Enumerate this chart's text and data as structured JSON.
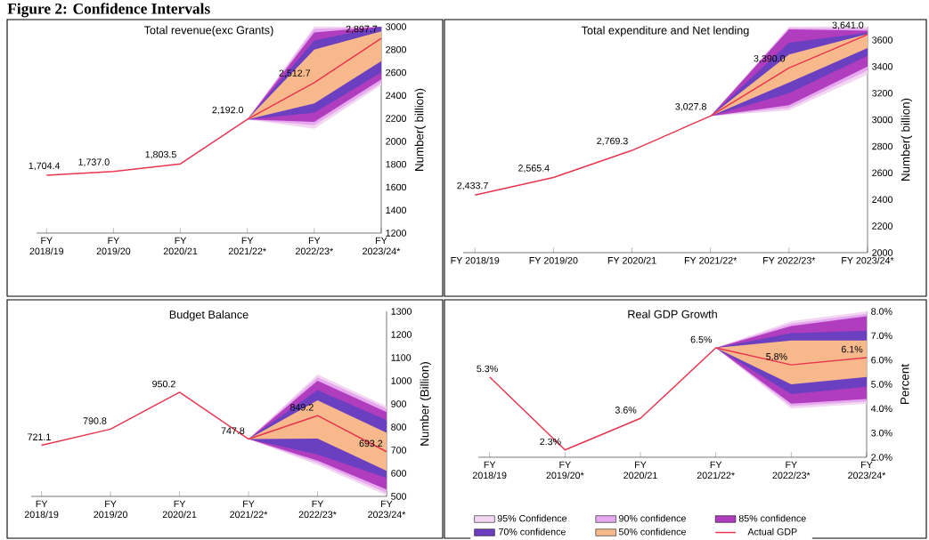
{
  "chart_data": [
    {
      "type": "other",
      "title": "Figure 2: Confidence Intervals"
    },
    {
      "type": "line",
      "title": "Total revenue(exc Grants)",
      "ylabel": "Number( billion)",
      "categories": [
        "FY 2018/19",
        "FY 2019/20",
        "FY 2020/21",
        "FY 2021/22*",
        "FY 2022/23*",
        "FY 2023/24*"
      ],
      "ylim": [
        1200,
        3000
      ],
      "yticks": [
        1200,
        1400,
        1600,
        1800,
        2000,
        2200,
        2400,
        2600,
        2800,
        3000
      ],
      "series": [
        {
          "color": "#f2d6f2",
          "values": [
            null,
            null,
            null,
            null,
            null,
            null
          ],
          "lower": [
            null,
            null,
            null,
            2192.0,
            2110,
            2490
          ],
          "upper": [
            null,
            null,
            null,
            2192.0,
            3000,
            3000
          ]
        },
        {
          "color": "#e6a8ee",
          "values": [
            null,
            null,
            null,
            null,
            null,
            null
          ],
          "lower": [
            null,
            null,
            null,
            2192.0,
            2140,
            2510
          ],
          "upper": [
            null,
            null,
            null,
            2192.0,
            2980,
            3000
          ]
        },
        {
          "color": "#b03cbe",
          "values": [
            null,
            null,
            null,
            null,
            null,
            null
          ],
          "lower": [
            null,
            null,
            null,
            2192.0,
            2170,
            2540
          ],
          "upper": [
            null,
            null,
            null,
            2192.0,
            2950,
            3000
          ]
        },
        {
          "color": "#6b40c0",
          "values": [
            null,
            null,
            null,
            null,
            null,
            null
          ],
          "lower": [
            null,
            null,
            null,
            2192.0,
            2250,
            2600
          ],
          "upper": [
            null,
            null,
            null,
            2192.0,
            2880,
            3000
          ]
        },
        {
          "color": "#f7b98c",
          "values": [
            null,
            null,
            null,
            null,
            null,
            null
          ],
          "lower": [
            null,
            null,
            null,
            2192.0,
            2330,
            2700
          ],
          "upper": [
            null,
            null,
            null,
            2192.0,
            2800,
            2960
          ]
        },
        {
          "color": "#e8344e",
          "values": [
            1704.4,
            1737.0,
            1803.5,
            2192.0,
            2512.7,
            2897.7
          ],
          "value_labels": [
            "1,704.4",
            "1,737.0",
            "1,803.5",
            "2,192.0",
            "2,512.7",
            "2,897.7"
          ]
        }
      ]
    },
    {
      "type": "line",
      "title": "Total expenditure and Net lending",
      "ylabel": "Number( billion)",
      "categories": [
        "FY 2018/19",
        "FY 2019/20",
        "FY 2020/21",
        "FY 2021/22*",
        "FY 2022/23*",
        "FY 2023/24*"
      ],
      "ylim": [
        2000,
        3700
      ],
      "yticks": [
        2000,
        2200,
        2400,
        2600,
        2800,
        3000,
        3200,
        3400,
        3600
      ],
      "series": [
        {
          "color": "#f2d6f2",
          "values": [
            null,
            null,
            null,
            null,
            null,
            null
          ],
          "lower": [
            null,
            null,
            null,
            3027.8,
            3070,
            3340
          ],
          "upper": [
            null,
            null,
            null,
            3027.8,
            3700,
            3700
          ]
        },
        {
          "color": "#e6a8ee",
          "values": [
            null,
            null,
            null,
            null,
            null,
            null
          ],
          "lower": [
            null,
            null,
            null,
            3027.8,
            3090,
            3370
          ],
          "upper": [
            null,
            null,
            null,
            3027.8,
            3690,
            3685
          ]
        },
        {
          "color": "#b03cbe",
          "values": [
            null,
            null,
            null,
            null,
            null,
            null
          ],
          "lower": [
            null,
            null,
            null,
            3027.8,
            3110,
            3400
          ],
          "upper": [
            null,
            null,
            null,
            3027.8,
            3680,
            3670
          ]
        },
        {
          "color": "#6b40c0",
          "values": [
            null,
            null,
            null,
            null,
            null,
            null
          ],
          "lower": [
            null,
            null,
            null,
            3027.8,
            3200,
            3480
          ],
          "upper": [
            null,
            null,
            null,
            3027.8,
            3580,
            3655
          ]
        },
        {
          "color": "#f7b98c",
          "values": [
            null,
            null,
            null,
            null,
            null,
            null
          ],
          "lower": [
            null,
            null,
            null,
            3027.8,
            3280,
            3540
          ],
          "upper": [
            null,
            null,
            null,
            3027.8,
            3490,
            3645
          ]
        },
        {
          "color": "#e8344e",
          "values": [
            2433.7,
            2565.4,
            2769.3,
            3027.8,
            3390.0,
            3641.0
          ],
          "value_labels": [
            "2,433.7",
            "2,565.4",
            "2,769.3",
            "3,027.8",
            "3,390.0",
            "3,641.0"
          ]
        }
      ]
    },
    {
      "type": "line",
      "title": "Budget Balance",
      "ylabel": "Number (Billion)",
      "categories": [
        "FY 2018/19",
        "FY 2019/20",
        "FY 2020/21",
        "FY 2021/22*",
        "FY 2022/23*",
        "FY 2023/24*"
      ],
      "ylim": [
        500,
        1300
      ],
      "yticks": [
        500,
        600,
        700,
        800,
        900,
        1000,
        1100,
        1200,
        1300
      ],
      "series": [
        {
          "color": "#f2d6f2",
          "values": [
            null,
            null,
            null,
            null,
            null,
            null
          ],
          "lower": [
            null,
            null,
            null,
            747.8,
            636,
            504
          ],
          "upper": [
            null,
            null,
            null,
            747.8,
            1028,
            889
          ]
        },
        {
          "color": "#e6a8ee",
          "values": [
            null,
            null,
            null,
            null,
            null,
            null
          ],
          "lower": [
            null,
            null,
            null,
            747.8,
            645,
            515
          ],
          "upper": [
            null,
            null,
            null,
            747.8,
            1015,
            880
          ]
        },
        {
          "color": "#b03cbe",
          "values": [
            null,
            null,
            null,
            null,
            null,
            null
          ],
          "lower": [
            null,
            null,
            null,
            747.8,
            655,
            530
          ],
          "upper": [
            null,
            null,
            null,
            747.8,
            1000,
            864
          ]
        },
        {
          "color": "#6b40c0",
          "values": [
            null,
            null,
            null,
            null,
            null,
            null
          ],
          "lower": [
            null,
            null,
            null,
            747.8,
            681,
            580
          ],
          "upper": [
            null,
            null,
            null,
            747.8,
            960,
            830
          ]
        },
        {
          "color": "#f7b98c",
          "values": [
            null,
            null,
            null,
            null,
            null,
            null
          ],
          "lower": [
            null,
            null,
            null,
            747.8,
            750,
            611
          ],
          "upper": [
            null,
            null,
            null,
            747.8,
            915,
            775
          ]
        },
        {
          "color": "#e8344e",
          "values": [
            721.1,
            790.8,
            950.2,
            747.8,
            849.2,
            693.2
          ],
          "value_labels": [
            "721.1",
            "790.8",
            "950.2",
            "747.8",
            "849.2",
            "693.2"
          ]
        }
      ]
    },
    {
      "type": "line",
      "title": "Real GDP Growth",
      "ylabel": "Percent",
      "legend": "bottom",
      "categories": [
        "FY 2018/19",
        "FY 2019/20*",
        "FY 2020/21",
        "FY 2021/22*",
        "FY 2022/23*",
        "FY 2023/24*"
      ],
      "ylim": [
        2,
        8
      ],
      "yticks": [
        {
          "value": 2,
          "label": "2.0%"
        },
        {
          "value": 3,
          "label": "3.0%"
        },
        {
          "value": 4,
          "label": "4.0%"
        },
        {
          "value": 5,
          "label": "5.0%"
        },
        {
          "value": 6,
          "label": "6.0%"
        },
        {
          "value": 7,
          "label": "7.0%"
        },
        {
          "value": 8,
          "label": "8.0%"
        }
      ],
      "series": [
        {
          "name": "95% Confidence",
          "color": "#f2d6f2",
          "values": [
            null,
            null,
            null,
            null,
            null,
            null
          ],
          "lower": [
            null,
            null,
            null,
            6.5,
            4.0,
            4.2
          ],
          "upper": [
            null,
            null,
            null,
            6.5,
            7.6,
            8.0
          ]
        },
        {
          "name": "90% confidence",
          "color": "#e6a8ee",
          "values": [
            null,
            null,
            null,
            null,
            null,
            null
          ],
          "lower": [
            null,
            null,
            null,
            6.5,
            4.1,
            4.3
          ],
          "upper": [
            null,
            null,
            null,
            6.5,
            7.5,
            7.9
          ]
        },
        {
          "name": "85% confidence",
          "color": "#b03cbe",
          "values": [
            null,
            null,
            null,
            null,
            null,
            null
          ],
          "lower": [
            null,
            null,
            null,
            6.5,
            4.2,
            4.4
          ],
          "upper": [
            null,
            null,
            null,
            6.5,
            7.4,
            7.8
          ]
        },
        {
          "name": "70% confidence",
          "color": "#6b40c0",
          "values": [
            null,
            null,
            null,
            null,
            null,
            null
          ],
          "lower": [
            null,
            null,
            null,
            6.5,
            4.6,
            4.9
          ],
          "upper": [
            null,
            null,
            null,
            6.5,
            7.1,
            7.2
          ]
        },
        {
          "name": "50% confidence",
          "color": "#f7b98c",
          "values": [
            null,
            null,
            null,
            null,
            null,
            null
          ],
          "lower": [
            null,
            null,
            null,
            6.5,
            5.0,
            5.3
          ],
          "upper": [
            null,
            null,
            null,
            6.5,
            6.8,
            6.8
          ]
        },
        {
          "name": "Actual GDP",
          "color": "#e8344e",
          "values": [
            5.3,
            2.3,
            3.6,
            6.5,
            5.8,
            6.1
          ],
          "value_labels": [
            "5.3%",
            "2.3%",
            "3.6%",
            "6.5%",
            "5.8%",
            "6.1%"
          ]
        }
      ]
    }
  ]
}
